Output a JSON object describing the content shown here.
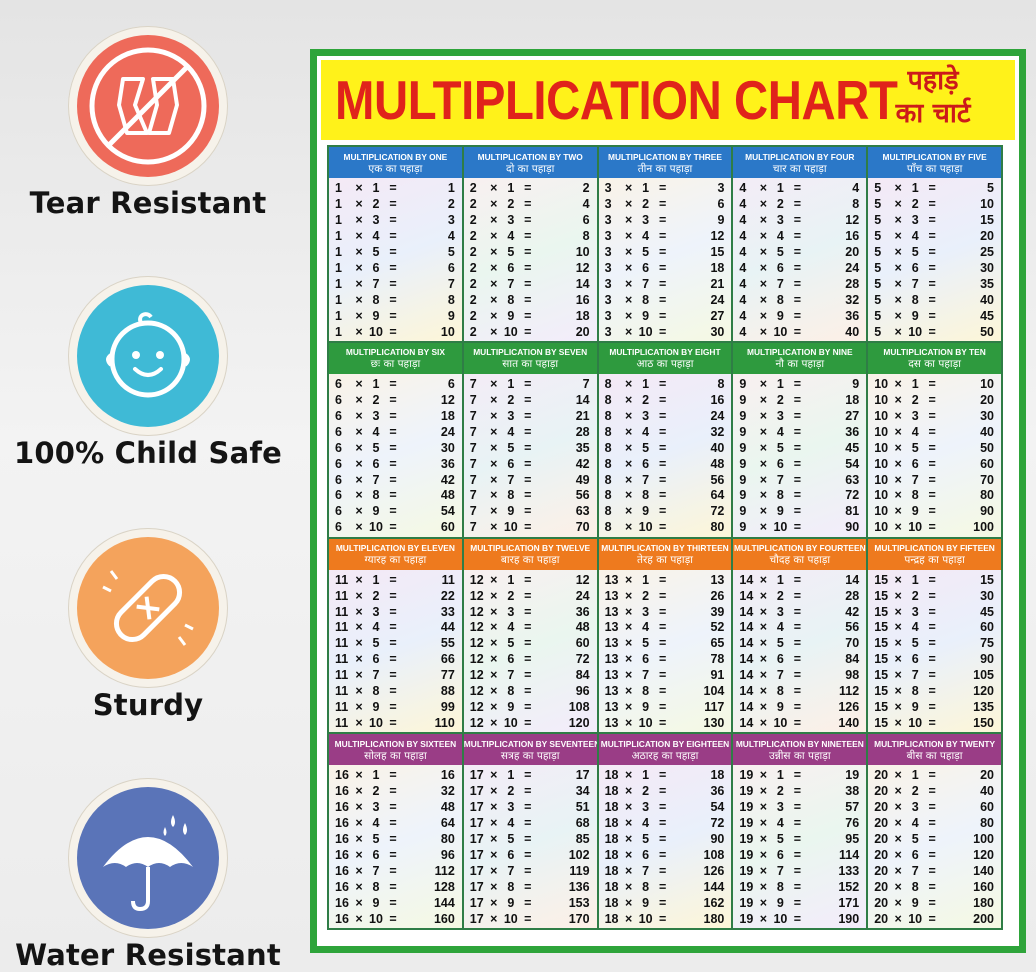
{
  "features": [
    {
      "label": "Tear Resistant",
      "icon": "tear-resistant-icon",
      "color": "#ee6a5a"
    },
    {
      "label": "100% Child Safe",
      "icon": "child-face-icon",
      "color": "#3fbad6"
    },
    {
      "label": "Sturdy",
      "icon": "bandage-icon",
      "color": "#f4a35c"
    },
    {
      "label": "Water Resistant",
      "icon": "umbrella-icon",
      "color": "#5a74b8"
    }
  ],
  "poster": {
    "title": "MULTIPLICATION CHART",
    "hindi_title_line1": "पहाड़े",
    "hindi_title_line2": "का चार्ट",
    "border_color": "#2ea43a",
    "title_band_color": "#fff21a",
    "title_color": "#e0231b"
  },
  "row_colors": [
    "#2b78c8",
    "#2e9a3e",
    "#ee7a1e",
    "#9a3d86"
  ],
  "tables": [
    {
      "n": 1,
      "en": "MULTIPLICATION BY ONE",
      "hi": "एक का पहाड़ा"
    },
    {
      "n": 2,
      "en": "MULTIPLICATION BY TWO",
      "hi": "दो का पहाड़ा"
    },
    {
      "n": 3,
      "en": "MULTIPLICATION BY THREE",
      "hi": "तीन का पहाड़ा"
    },
    {
      "n": 4,
      "en": "MULTIPLICATION BY FOUR",
      "hi": "चार का पहाड़ा"
    },
    {
      "n": 5,
      "en": "MULTIPLICATION BY FIVE",
      "hi": "पाँच का पहाड़ा"
    },
    {
      "n": 6,
      "en": "MULTIPLICATION BY SIX",
      "hi": "छः का पहाड़ा"
    },
    {
      "n": 7,
      "en": "MULTIPLICATION BY SEVEN",
      "hi": "सात का पहाड़ा"
    },
    {
      "n": 8,
      "en": "MULTIPLICATION BY EIGHT",
      "hi": "आठ का पहाड़ा"
    },
    {
      "n": 9,
      "en": "MULTIPLICATION BY NINE",
      "hi": "नौ का पहाड़ा"
    },
    {
      "n": 10,
      "en": "MULTIPLICATION BY TEN",
      "hi": "दस का पहाड़ा"
    },
    {
      "n": 11,
      "en": "MULTIPLICATION BY ELEVEN",
      "hi": "ग्यारह का पहाड़ा"
    },
    {
      "n": 12,
      "en": "MULTIPLICATION BY TWELVE",
      "hi": "बारह का पहाड़ा"
    },
    {
      "n": 13,
      "en": "MULTIPLICATION BY THIRTEEN",
      "hi": "तेरह का पहाड़ा"
    },
    {
      "n": 14,
      "en": "MULTIPLICATION BY FOURTEEN",
      "hi": "चौदह का पहाड़ा"
    },
    {
      "n": 15,
      "en": "MULTIPLICATION BY FIFTEEN",
      "hi": "पन्द्रह का पहाड़ा"
    },
    {
      "n": 16,
      "en": "MULTIPLICATION BY SIXTEEN",
      "hi": "सोलह का पहाड़ा"
    },
    {
      "n": 17,
      "en": "MULTIPLICATION BY SEVENTEEN",
      "hi": "सत्रह का पहाड़ा"
    },
    {
      "n": 18,
      "en": "MULTIPLICATION BY EIGHTEEN",
      "hi": "अठारह का पहाड़ा"
    },
    {
      "n": 19,
      "en": "MULTIPLICATION BY NINETEEN",
      "hi": "उन्नीस का पहाड़ा"
    },
    {
      "n": 20,
      "en": "MULTIPLICATION BY TWENTY",
      "hi": "बीस का पहाड़ा"
    }
  ],
  "multiplier_count": 10,
  "times_symbol": "×",
  "equals_symbol": "="
}
